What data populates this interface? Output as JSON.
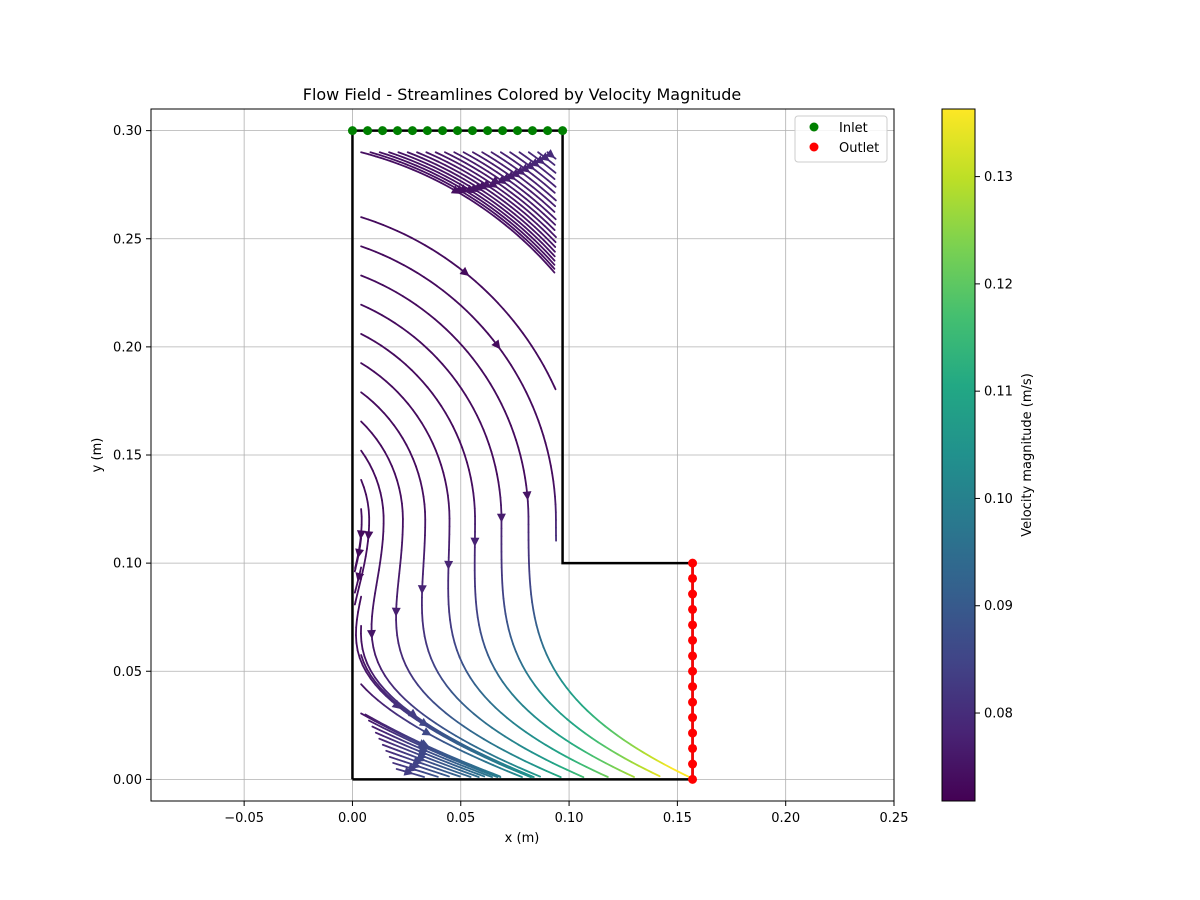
{
  "chart_data": {
    "type": "streamline",
    "title": "Flow Field - Streamlines Colored by Velocity Magnitude",
    "xlabel": "x (m)",
    "ylabel": "y (m)",
    "xlim": [
      -0.093,
      0.25
    ],
    "ylim": [
      -0.01,
      0.31
    ],
    "xticks": [
      -0.05,
      0.0,
      0.05,
      0.1,
      0.15,
      0.2,
      0.25
    ],
    "yticks": [
      0.0,
      0.05,
      0.1,
      0.15,
      0.2,
      0.25,
      0.3
    ],
    "xtick_labels": [
      "−0.05",
      "0.00",
      "0.05",
      "0.10",
      "0.15",
      "0.20",
      "0.25"
    ],
    "ytick_labels": [
      "0.00",
      "0.05",
      "0.10",
      "0.15",
      "0.20",
      "0.25",
      "0.30"
    ],
    "grid": true,
    "legend_position": "top-right",
    "legend": [
      {
        "label": "Inlet",
        "color": "#008000"
      },
      {
        "label": "Outlet",
        "color": "#ff0000"
      }
    ],
    "boundary": [
      [
        0,
        0
      ],
      [
        0,
        0.3
      ],
      [
        0.097,
        0.3
      ],
      [
        0.097,
        0.1
      ],
      [
        0.157,
        0.1
      ],
      [
        0.157,
        0
      ]
    ],
    "inlet_points": {
      "x": [
        0.0,
        0.007,
        0.0139,
        0.0208,
        0.0277,
        0.0346,
        0.0416,
        0.0485,
        0.0554,
        0.0624,
        0.0693,
        0.0762,
        0.0831,
        0.0901,
        0.097
      ],
      "y": 0.3
    },
    "outlet_points": {
      "x": 0.157,
      "y": [
        0.0,
        0.0071,
        0.0143,
        0.0214,
        0.0286,
        0.0357,
        0.0429,
        0.05,
        0.0571,
        0.0643,
        0.0714,
        0.0786,
        0.0857,
        0.0929,
        0.1
      ]
    },
    "colorbar": {
      "label": "Velocity magnitude (m/s)",
      "range": [
        0.0718,
        0.1363
      ],
      "ticks": [
        0.08,
        0.09,
        0.1,
        0.11,
        0.12,
        0.13
      ],
      "tick_labels": [
        "0.08",
        "0.09",
        "0.10",
        "0.11",
        "0.12",
        "0.13"
      ],
      "colormap": "viridis"
    }
  }
}
